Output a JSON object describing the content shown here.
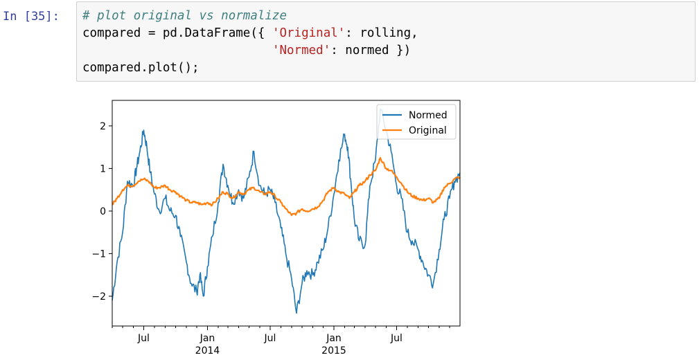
{
  "cell": {
    "prompt": "In [35]:",
    "code": {
      "line1_comment": "# plot original vs normalize",
      "line2_a": "compared = pd.DataFrame({ ",
      "line2_str": "'Original'",
      "line2_b": ": rolling,",
      "line3_pad": "                          ",
      "line3_str": "'Normed'",
      "line3_b": ": normed })",
      "line4": "compared.plot();"
    }
  },
  "chart_data": {
    "type": "line",
    "x_type": "date",
    "xlim": [
      "2013-04-01",
      "2015-12-31"
    ],
    "ylim": [
      -2.7,
      2.6
    ],
    "yticks": [
      -2,
      -1,
      0,
      1,
      2
    ],
    "ytick_labels": [
      "−2",
      "−1",
      "0",
      "1",
      "2"
    ],
    "xticks": [
      {
        "date": "2013-07-01",
        "label": "Jul",
        "sublabel": ""
      },
      {
        "date": "2014-01-01",
        "label": "Jan",
        "sublabel": "2014"
      },
      {
        "date": "2014-07-01",
        "label": "Jul",
        "sublabel": ""
      },
      {
        "date": "2015-01-01",
        "label": "Jan",
        "sublabel": "2015"
      },
      {
        "date": "2015-07-01",
        "label": "Jul",
        "sublabel": ""
      }
    ],
    "legend": "top-right",
    "grid": false,
    "series": [
      {
        "name": "Normed",
        "color": "#1f77b4",
        "points": [
          [
            "2013-04-01",
            -2.1
          ],
          [
            "2013-04-15",
            -1.2
          ],
          [
            "2013-05-01",
            -0.5
          ],
          [
            "2013-05-15",
            0.7
          ],
          [
            "2013-06-01",
            0.6
          ],
          [
            "2013-06-10",
            1.0
          ],
          [
            "2013-06-20",
            1.4
          ],
          [
            "2013-07-01",
            1.9
          ],
          [
            "2013-07-10",
            1.5
          ],
          [
            "2013-07-20",
            0.9
          ],
          [
            "2013-08-01",
            0.4
          ],
          [
            "2013-08-15",
            0.0
          ],
          [
            "2013-09-01",
            0.3
          ],
          [
            "2013-09-15",
            0.0
          ],
          [
            "2013-10-01",
            -0.1
          ],
          [
            "2013-10-15",
            -0.6
          ],
          [
            "2013-11-01",
            -1.2
          ],
          [
            "2013-11-15",
            -1.7
          ],
          [
            "2013-12-01",
            -1.9
          ],
          [
            "2013-12-10",
            -1.5
          ],
          [
            "2013-12-20",
            -2.0
          ],
          [
            "2014-01-01",
            -1.3
          ],
          [
            "2014-01-15",
            -0.6
          ],
          [
            "2014-02-01",
            0.2
          ],
          [
            "2014-02-15",
            1.1
          ],
          [
            "2014-03-01",
            0.6
          ],
          [
            "2014-03-15",
            0.2
          ],
          [
            "2014-04-01",
            0.5
          ],
          [
            "2014-04-15",
            0.3
          ],
          [
            "2014-05-01",
            0.8
          ],
          [
            "2014-05-15",
            1.4
          ],
          [
            "2014-06-01",
            0.6
          ],
          [
            "2014-06-15",
            0.4
          ],
          [
            "2014-07-01",
            0.5
          ],
          [
            "2014-07-15",
            0.2
          ],
          [
            "2014-08-01",
            -0.4
          ],
          [
            "2014-08-15",
            -1.0
          ],
          [
            "2014-09-01",
            -1.6
          ],
          [
            "2014-09-15",
            -2.4
          ],
          [
            "2014-10-01",
            -1.7
          ],
          [
            "2014-10-15",
            -1.4
          ],
          [
            "2014-11-01",
            -1.5
          ],
          [
            "2014-11-15",
            -1.2
          ],
          [
            "2014-12-01",
            -0.9
          ],
          [
            "2014-12-15",
            -0.4
          ],
          [
            "2015-01-01",
            0.4
          ],
          [
            "2015-01-15",
            1.2
          ],
          [
            "2015-02-01",
            1.8
          ],
          [
            "2015-02-10",
            1.5
          ],
          [
            "2015-02-20",
            0.6
          ],
          [
            "2015-03-01",
            -0.2
          ],
          [
            "2015-03-15",
            -0.7
          ],
          [
            "2015-04-01",
            -0.8
          ],
          [
            "2015-04-15",
            0.6
          ],
          [
            "2015-05-01",
            1.2
          ],
          [
            "2015-05-15",
            2.4
          ],
          [
            "2015-06-01",
            1.9
          ],
          [
            "2015-06-15",
            1.4
          ],
          [
            "2015-07-01",
            0.6
          ],
          [
            "2015-07-15",
            0.3
          ],
          [
            "2015-08-01",
            -0.5
          ],
          [
            "2015-08-15",
            -0.7
          ],
          [
            "2015-09-01",
            -0.9
          ],
          [
            "2015-09-15",
            -1.2
          ],
          [
            "2015-10-01",
            -1.5
          ],
          [
            "2015-10-15",
            -1.7
          ],
          [
            "2015-11-01",
            -0.9
          ],
          [
            "2015-11-15",
            -0.2
          ],
          [
            "2015-12-01",
            0.3
          ],
          [
            "2015-12-15",
            0.7
          ],
          [
            "2015-12-31",
            0.9
          ]
        ]
      },
      {
        "name": "Original",
        "color": "#ff7f0e",
        "points": [
          [
            "2013-04-01",
            0.15
          ],
          [
            "2013-04-15",
            0.3
          ],
          [
            "2013-05-01",
            0.5
          ],
          [
            "2013-05-15",
            0.6
          ],
          [
            "2013-06-01",
            0.6
          ],
          [
            "2013-06-15",
            0.7
          ],
          [
            "2013-07-01",
            0.75
          ],
          [
            "2013-07-15",
            0.7
          ],
          [
            "2013-08-01",
            0.55
          ],
          [
            "2013-08-15",
            0.55
          ],
          [
            "2013-09-01",
            0.6
          ],
          [
            "2013-09-15",
            0.5
          ],
          [
            "2013-10-01",
            0.45
          ],
          [
            "2013-10-15",
            0.35
          ],
          [
            "2013-11-01",
            0.25
          ],
          [
            "2013-11-15",
            0.2
          ],
          [
            "2013-12-01",
            0.2
          ],
          [
            "2013-12-15",
            0.15
          ],
          [
            "2014-01-01",
            0.2
          ],
          [
            "2014-01-15",
            0.15
          ],
          [
            "2014-02-01",
            0.3
          ],
          [
            "2014-02-15",
            0.45
          ],
          [
            "2014-03-01",
            0.4
          ],
          [
            "2014-03-15",
            0.3
          ],
          [
            "2014-04-01",
            0.45
          ],
          [
            "2014-04-15",
            0.4
          ],
          [
            "2014-05-01",
            0.5
          ],
          [
            "2014-05-15",
            0.55
          ],
          [
            "2014-06-01",
            0.45
          ],
          [
            "2014-06-15",
            0.4
          ],
          [
            "2014-07-01",
            0.45
          ],
          [
            "2014-07-15",
            0.35
          ],
          [
            "2014-08-01",
            0.2
          ],
          [
            "2014-08-15",
            0.05
          ],
          [
            "2014-09-01",
            -0.1
          ],
          [
            "2014-09-15",
            -0.05
          ],
          [
            "2014-10-01",
            0.05
          ],
          [
            "2014-10-15",
            0.0
          ],
          [
            "2014-11-01",
            0.05
          ],
          [
            "2014-11-15",
            0.1
          ],
          [
            "2014-12-01",
            0.25
          ],
          [
            "2014-12-15",
            0.45
          ],
          [
            "2015-01-01",
            0.55
          ],
          [
            "2015-01-15",
            0.45
          ],
          [
            "2015-02-01",
            0.4
          ],
          [
            "2015-02-15",
            0.3
          ],
          [
            "2015-03-01",
            0.45
          ],
          [
            "2015-03-15",
            0.6
          ],
          [
            "2015-04-01",
            0.7
          ],
          [
            "2015-04-15",
            0.85
          ],
          [
            "2015-05-01",
            0.95
          ],
          [
            "2015-05-15",
            1.25
          ],
          [
            "2015-06-01",
            1.0
          ],
          [
            "2015-06-15",
            0.95
          ],
          [
            "2015-07-01",
            0.8
          ],
          [
            "2015-07-15",
            0.65
          ],
          [
            "2015-08-01",
            0.45
          ],
          [
            "2015-08-15",
            0.35
          ],
          [
            "2015-09-01",
            0.3
          ],
          [
            "2015-09-15",
            0.25
          ],
          [
            "2015-10-01",
            0.3
          ],
          [
            "2015-10-15",
            0.2
          ],
          [
            "2015-11-01",
            0.3
          ],
          [
            "2015-11-15",
            0.55
          ],
          [
            "2015-12-01",
            0.65
          ],
          [
            "2015-12-15",
            0.75
          ],
          [
            "2015-12-31",
            0.8
          ]
        ]
      }
    ]
  }
}
